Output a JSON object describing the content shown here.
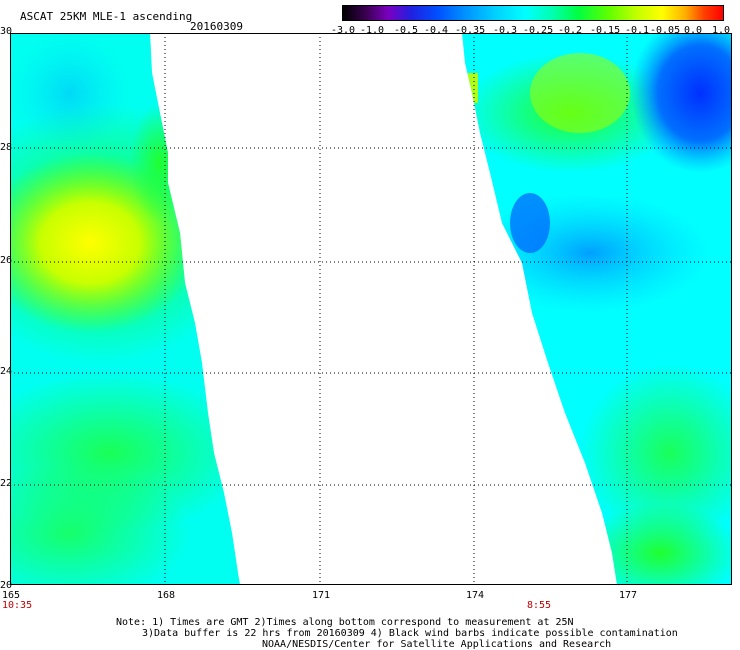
{
  "header": {
    "title": "ASCAT 25KM MLE-1 ascending",
    "date": "20160309"
  },
  "colorbar": {
    "labels": [
      "-3.0",
      "-1.0",
      "-0.5",
      "-0.4",
      "-0.35",
      "-0.3",
      "-0.25",
      "-0.2",
      "-0.15",
      "-0.1",
      "-0.05",
      "0.0",
      "1.0"
    ]
  },
  "axes": {
    "lat_ticks": [
      "30",
      "28",
      "26",
      "24",
      "22",
      "20"
    ],
    "lon_ticks": [
      "165",
      "168",
      "171",
      "174",
      "177"
    ],
    "lat_range": [
      20,
      30
    ],
    "lon_range": [
      165,
      179.2
    ]
  },
  "times": [
    "10:35",
    "8:55"
  ],
  "notes": {
    "line1": "Note: 1) Times are GMT 2)Times along bottom correspond to measurement at 25N",
    "line2": "3)Data buffer is 22 hrs from 20160309 4) Black wind barbs indicate possible contamination",
    "line3": "NOAA/NESDIS/Center for Satellite Applications and Research"
  },
  "colors": {
    "cyan": "#00ffff",
    "green": "#00ff40",
    "yellow_green": "#a0ff00",
    "yellow": "#ffff00",
    "blue": "#0040ff",
    "light_blue": "#00b0ff"
  }
}
